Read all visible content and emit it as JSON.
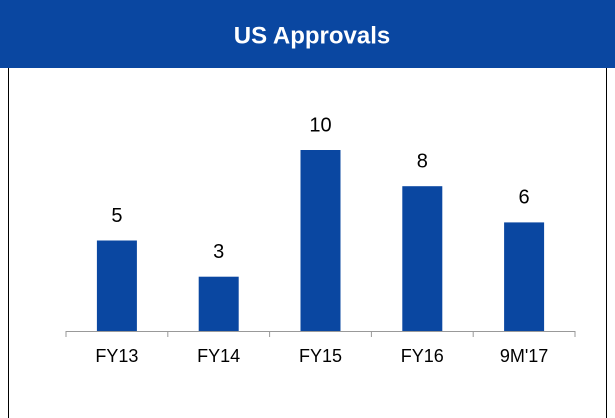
{
  "chart_data": {
    "type": "bar",
    "title": "US Approvals",
    "categories": [
      "FY13",
      "FY14",
      "FY15",
      "FY16",
      "9M'17"
    ],
    "values": [
      5,
      3,
      10,
      8,
      6
    ],
    "color": "#0a47a1",
    "ylim": [
      0,
      10
    ],
    "grid": false
  }
}
